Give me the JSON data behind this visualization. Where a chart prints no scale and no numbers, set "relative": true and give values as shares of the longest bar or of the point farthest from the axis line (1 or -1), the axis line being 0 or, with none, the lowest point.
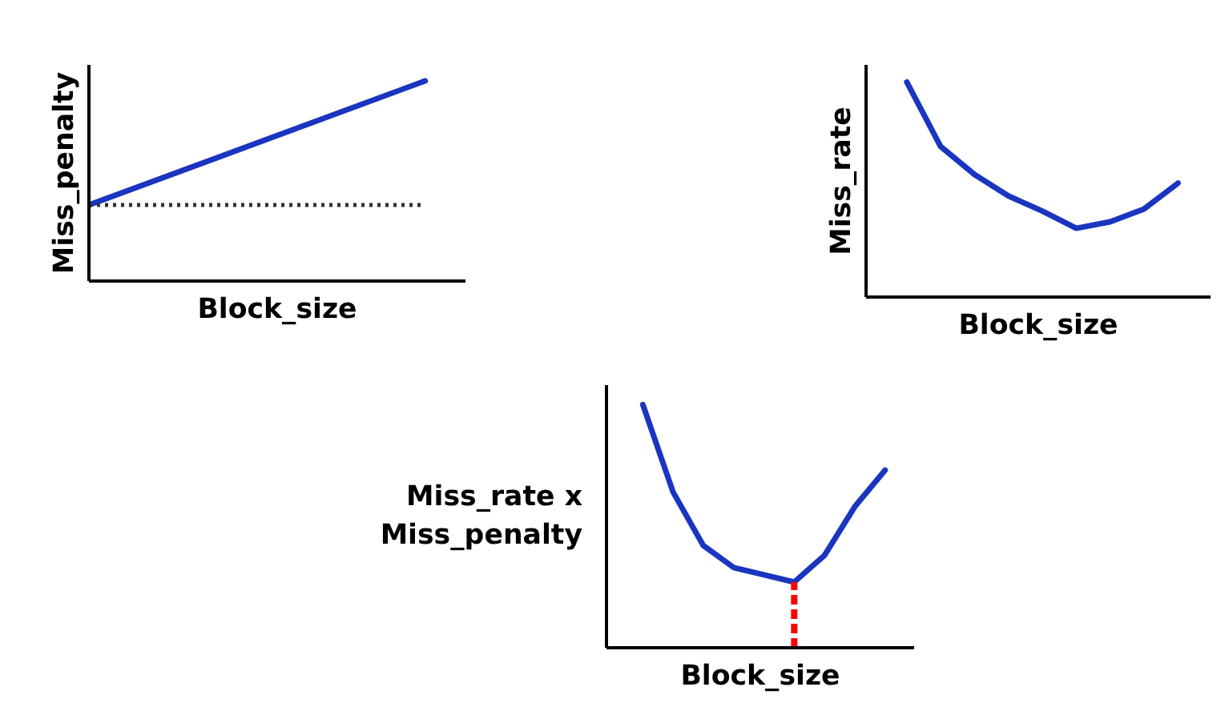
{
  "chart_data": [
    {
      "type": "line",
      "relative": true,
      "xlabel": "Block_size",
      "ylabel": "Miss_penalty",
      "categories": [
        null,
        null
      ],
      "series": [
        {
          "color": "#1a35c0",
          "values": [
            0.38,
            1
          ]
        }
      ],
      "ref_lines": [
        {
          "axis": "y",
          "value": 0.38,
          "color": "#333333",
          "line_style": "dotted"
        }
      ]
    },
    {
      "type": "line",
      "relative": true,
      "xlabel": "Block_size",
      "ylabel": "Miss_rate",
      "categories": [
        null,
        null,
        null,
        null,
        null,
        null,
        null,
        null,
        null
      ],
      "series": [
        {
          "color": "#1a35c0",
          "values": [
            1,
            0.7,
            0.57,
            0.47,
            0.4,
            0.32,
            0.35,
            0.41,
            0.53
          ]
        }
      ]
    },
    {
      "type": "line",
      "relative": true,
      "xlabel": "Block_size",
      "ylabel": "Miss_rate x\nMiss_penalty",
      "categories": [
        null,
        null,
        null,
        null,
        null,
        null,
        null,
        null,
        null
      ],
      "series": [
        {
          "color": "#1a35c0",
          "values": [
            1,
            0.64,
            0.42,
            0.33,
            0.3,
            0.27,
            0.38,
            0.58,
            0.73
          ]
        }
      ],
      "ref_lines": [
        {
          "axis": "x",
          "color": "#ff0000",
          "line_style": "dashed"
        }
      ]
    }
  ]
}
